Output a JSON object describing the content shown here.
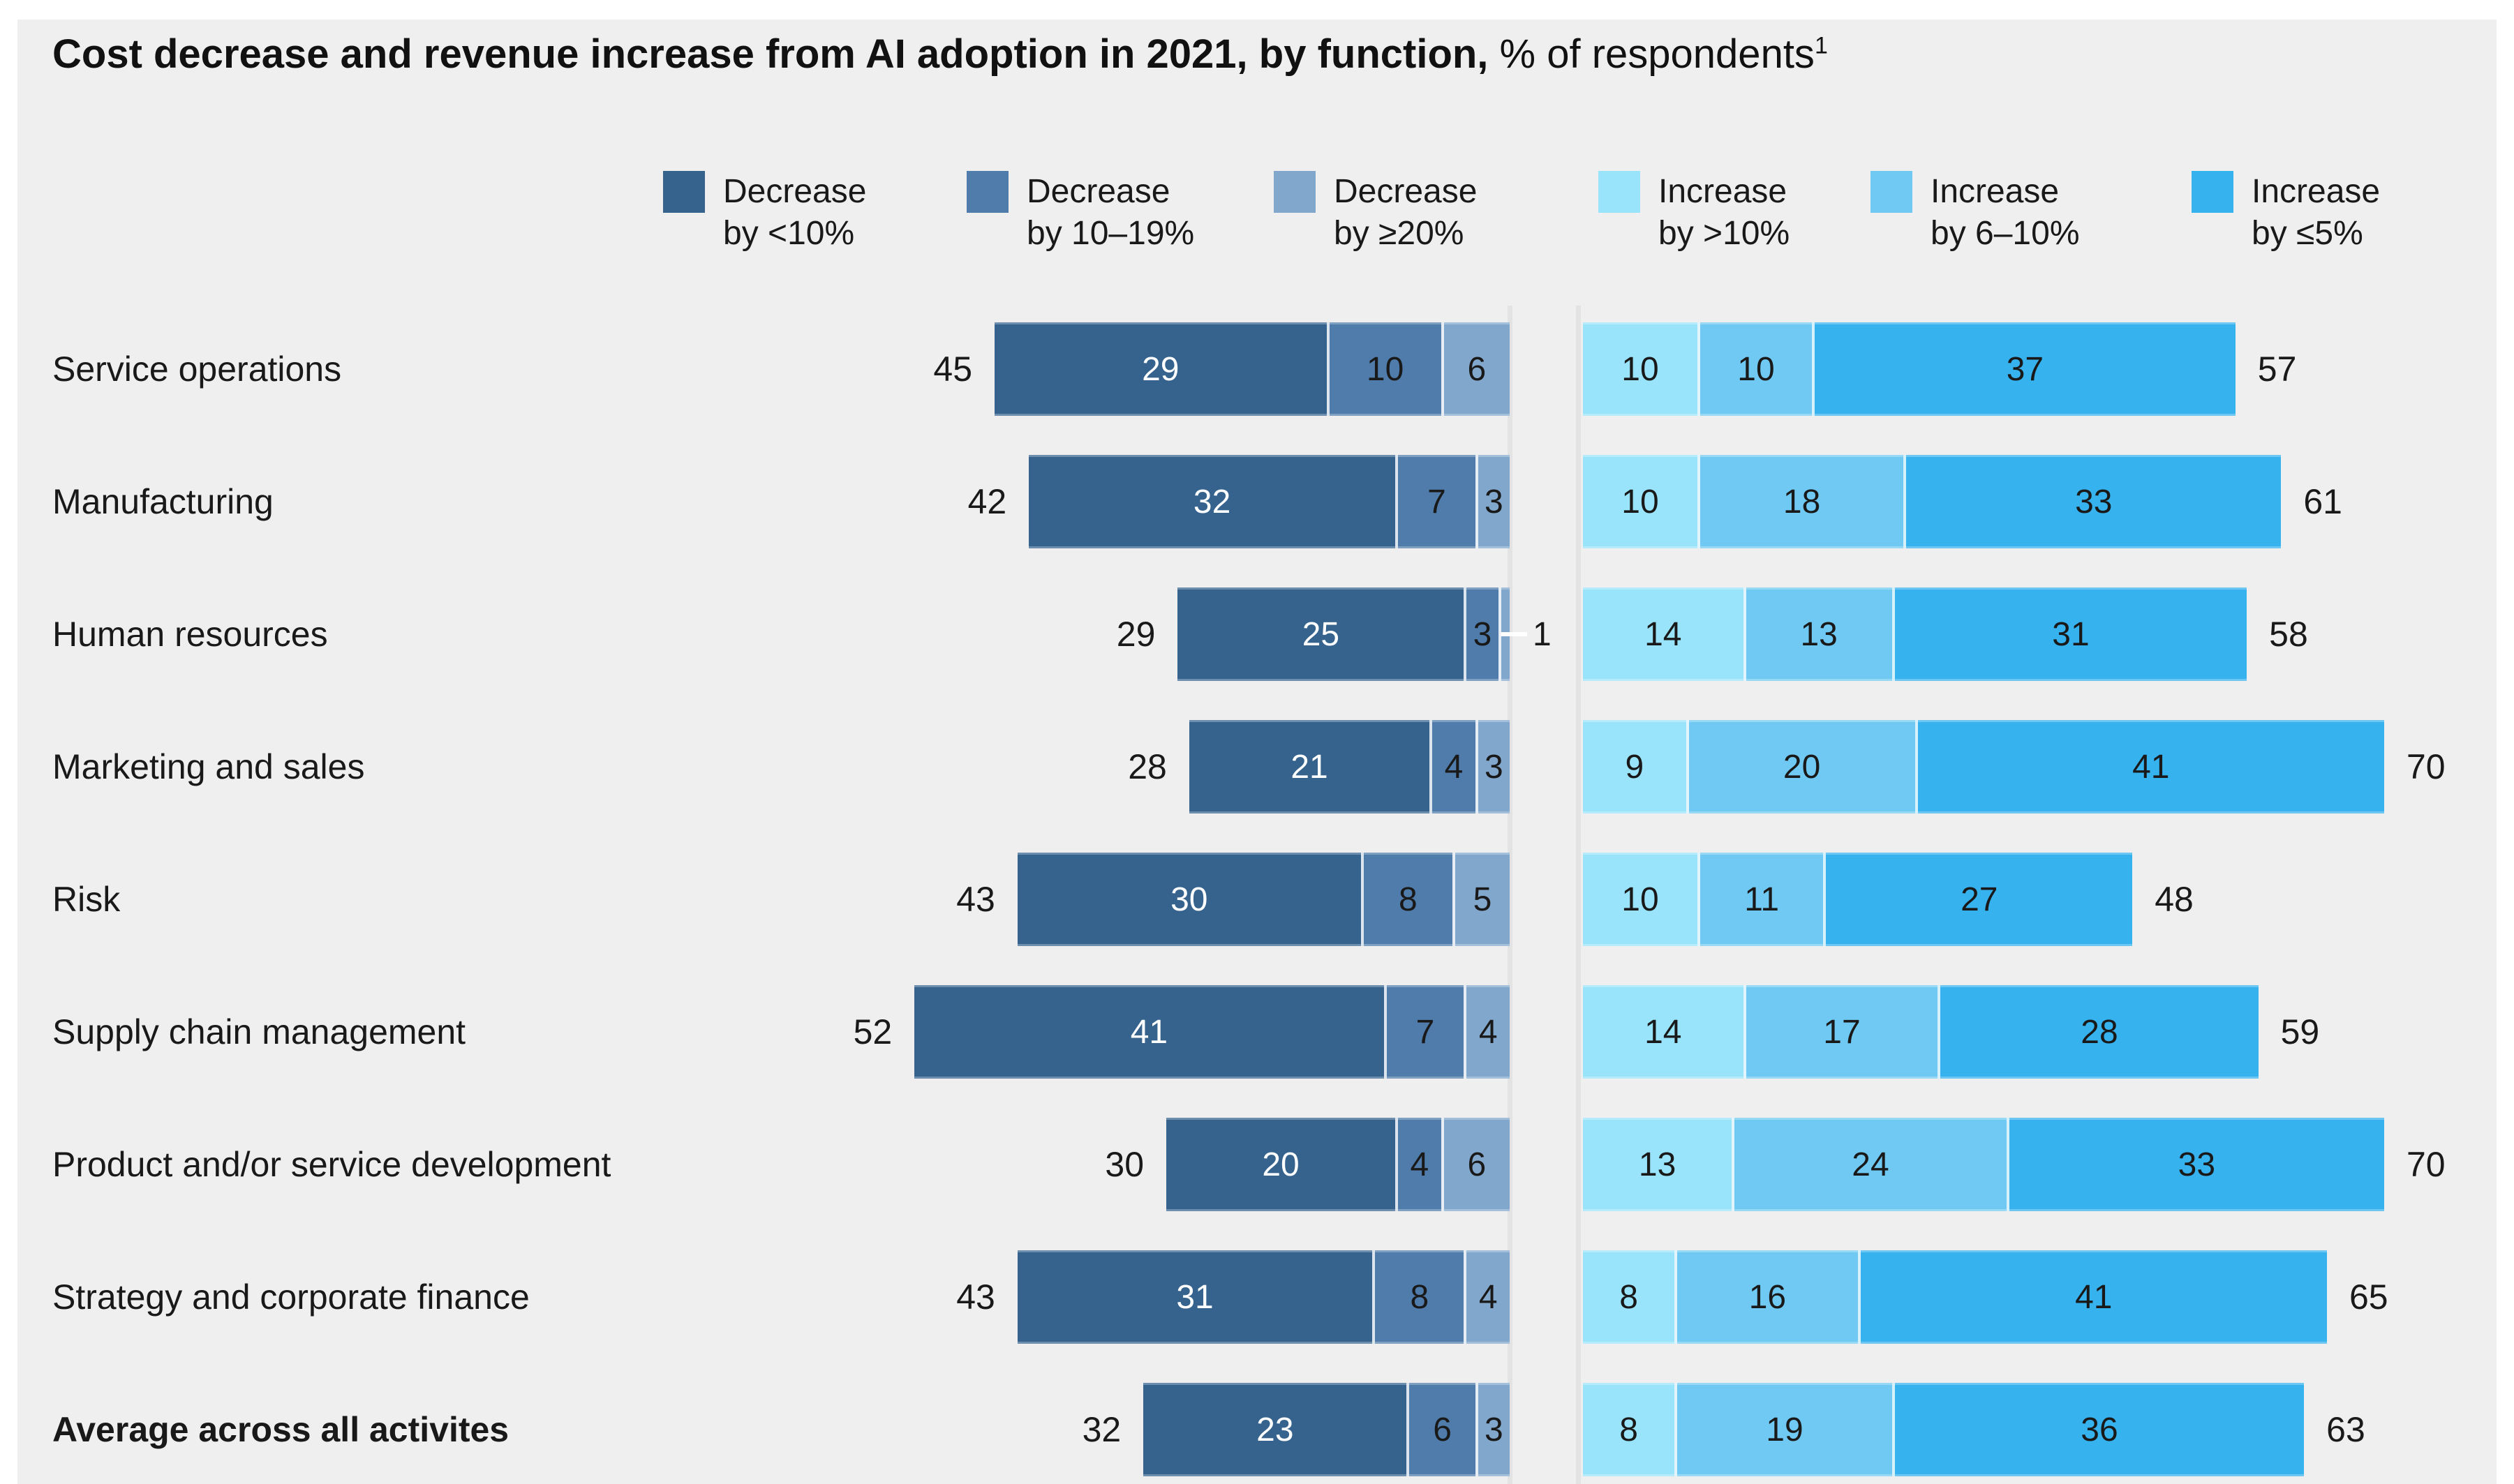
{
  "title": {
    "bold_part": "Cost decrease and revenue increase from AI adoption in 2021, by function,",
    "regular_part": " % of respondents",
    "superscript": "1"
  },
  "colors": {
    "background_panel": "#efefef",
    "page": "#ffffff",
    "decrease": [
      "#35638d",
      "#4f7cab",
      "#82a7cc"
    ],
    "increase": [
      "#99e4fa",
      "#6fc9f2",
      "#36b2ef"
    ],
    "text_dark": "#191919",
    "text_light": "#ffffff",
    "zero_axis_line": "#e3e3e3"
  },
  "legend": [
    {
      "line1": "Decrease",
      "line2": "by <10%",
      "series": "decrease-0"
    },
    {
      "line1": "Decrease",
      "line2": "by 10–19%",
      "series": "decrease-1"
    },
    {
      "line1": "Decrease",
      "line2": "by ≥20%",
      "series": "decrease-2"
    },
    {
      "line1": "Increase",
      "line2": "by >10%",
      "series": "increase-0"
    },
    {
      "line1": "Increase",
      "line2": "by 6–10%",
      "series": "increase-1"
    },
    {
      "line1": "Increase",
      "line2": "by ≤5%",
      "series": "increase-2"
    }
  ],
  "chart_data": {
    "type": "bar",
    "subtype": "diverging-stacked-horizontal",
    "unit": "% of respondents",
    "legend_position": "top",
    "series_decrease": [
      "Decrease by <10%",
      "Decrease by 10–19%",
      "Decrease by ≥20%"
    ],
    "series_increase": [
      "Increase by >10%",
      "Increase by 6–10%",
      "Increase by ≤5%"
    ],
    "rows": [
      {
        "label": "Service operations",
        "bold": false,
        "decrease_total": 45,
        "decrease": [
          29,
          10,
          6
        ],
        "increase": [
          10,
          10,
          37
        ],
        "increase_total": 57,
        "callout_last_decrease": false
      },
      {
        "label": "Manufacturing",
        "bold": false,
        "decrease_total": 42,
        "decrease": [
          32,
          7,
          3
        ],
        "increase": [
          10,
          18,
          33
        ],
        "increase_total": 61,
        "callout_last_decrease": false
      },
      {
        "label": "Human resources",
        "bold": false,
        "decrease_total": 29,
        "decrease": [
          25,
          3,
          1
        ],
        "increase": [
          14,
          13,
          31
        ],
        "increase_total": 58,
        "callout_last_decrease": true
      },
      {
        "label": "Marketing and sales",
        "bold": false,
        "decrease_total": 28,
        "decrease": [
          21,
          4,
          3
        ],
        "increase": [
          9,
          20,
          41
        ],
        "increase_total": 70,
        "callout_last_decrease": false
      },
      {
        "label": "Risk",
        "bold": false,
        "decrease_total": 43,
        "decrease": [
          30,
          8,
          5
        ],
        "increase": [
          10,
          11,
          27
        ],
        "increase_total": 48,
        "callout_last_decrease": false
      },
      {
        "label": "Supply chain management",
        "bold": false,
        "decrease_total": 52,
        "decrease": [
          41,
          7,
          4
        ],
        "increase": [
          14,
          17,
          28
        ],
        "increase_total": 59,
        "callout_last_decrease": false
      },
      {
        "label": "Product and/or service development",
        "bold": false,
        "decrease_total": 30,
        "decrease": [
          20,
          4,
          6
        ],
        "increase": [
          13,
          24,
          33
        ],
        "increase_total": 70,
        "callout_last_decrease": false
      },
      {
        "label": "Strategy and corporate finance",
        "bold": false,
        "decrease_total": 43,
        "decrease": [
          31,
          8,
          4
        ],
        "increase": [
          8,
          16,
          41
        ],
        "increase_total": 65,
        "callout_last_decrease": false
      },
      {
        "label": "Average across all activites",
        "bold": true,
        "decrease_total": 32,
        "decrease": [
          23,
          6,
          3
        ],
        "increase": [
          8,
          19,
          36
        ],
        "increase_total": 63,
        "callout_last_decrease": false
      }
    ]
  }
}
